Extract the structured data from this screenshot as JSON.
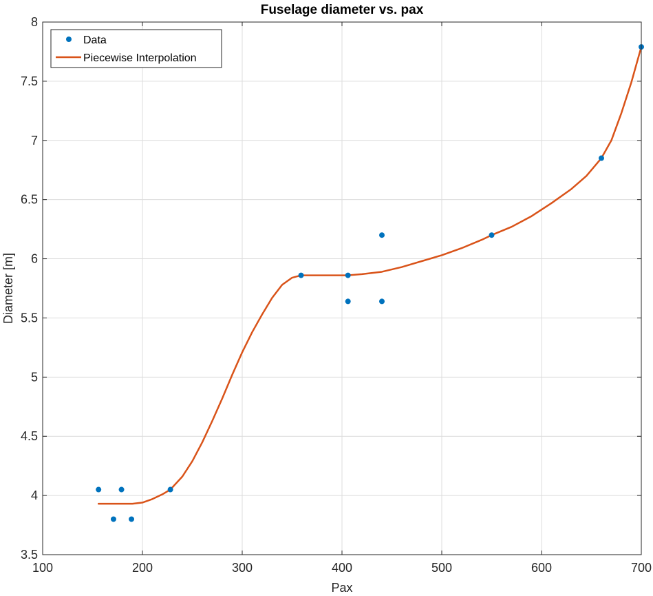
{
  "chart_data": {
    "type": "line",
    "title": "Fuselage diameter vs. pax",
    "xlabel": "Pax",
    "ylabel": "Diameter [m]",
    "xlim": [
      100,
      700
    ],
    "ylim": [
      3.5,
      8
    ],
    "xticks": [
      100,
      200,
      300,
      400,
      500,
      600,
      700
    ],
    "yticks": [
      3.5,
      4,
      4.5,
      5,
      5.5,
      6,
      6.5,
      7,
      7.5,
      8
    ],
    "xtick_labels": [
      "100",
      "200",
      "300",
      "400",
      "500",
      "600",
      "700"
    ],
    "ytick_labels": [
      "3.5",
      "4",
      "4.5",
      "5",
      "5.5",
      "6",
      "6.5",
      "7",
      "7.5",
      "8"
    ],
    "grid": true,
    "legend_position": "top-left",
    "series": [
      {
        "name": "Data",
        "kind": "scatter",
        "color": "#0072BD",
        "points": [
          [
            156,
            4.05
          ],
          [
            171,
            3.8
          ],
          [
            179,
            4.05
          ],
          [
            189,
            3.8
          ],
          [
            228,
            4.05
          ],
          [
            359,
            5.86
          ],
          [
            406,
            5.86
          ],
          [
            406,
            5.64
          ],
          [
            440,
            6.2
          ],
          [
            440,
            5.64
          ],
          [
            550,
            6.2
          ],
          [
            660,
            6.85
          ],
          [
            700,
            7.79
          ]
        ]
      },
      {
        "name": "Piecewise Interpolation",
        "kind": "line",
        "color": "#D95319",
        "points": [
          [
            156,
            3.93
          ],
          [
            170,
            3.93
          ],
          [
            180,
            3.93
          ],
          [
            190,
            3.93
          ],
          [
            200,
            3.94
          ],
          [
            210,
            3.97
          ],
          [
            220,
            4.01
          ],
          [
            228,
            4.05
          ],
          [
            240,
            4.16
          ],
          [
            250,
            4.29
          ],
          [
            260,
            4.45
          ],
          [
            270,
            4.63
          ],
          [
            280,
            4.82
          ],
          [
            290,
            5.02
          ],
          [
            300,
            5.21
          ],
          [
            310,
            5.38
          ],
          [
            320,
            5.53
          ],
          [
            330,
            5.67
          ],
          [
            340,
            5.78
          ],
          [
            350,
            5.84
          ],
          [
            359,
            5.86
          ],
          [
            370,
            5.86
          ],
          [
            380,
            5.86
          ],
          [
            390,
            5.86
          ],
          [
            406,
            5.86
          ],
          [
            420,
            5.87
          ],
          [
            440,
            5.89
          ],
          [
            460,
            5.93
          ],
          [
            480,
            5.98
          ],
          [
            500,
            6.03
          ],
          [
            520,
            6.09
          ],
          [
            540,
            6.16
          ],
          [
            550,
            6.2
          ],
          [
            570,
            6.27
          ],
          [
            590,
            6.36
          ],
          [
            610,
            6.47
          ],
          [
            630,
            6.59
          ],
          [
            645,
            6.7
          ],
          [
            660,
            6.85
          ],
          [
            670,
            7.0
          ],
          [
            680,
            7.23
          ],
          [
            690,
            7.49
          ],
          [
            700,
            7.79
          ]
        ]
      }
    ]
  }
}
